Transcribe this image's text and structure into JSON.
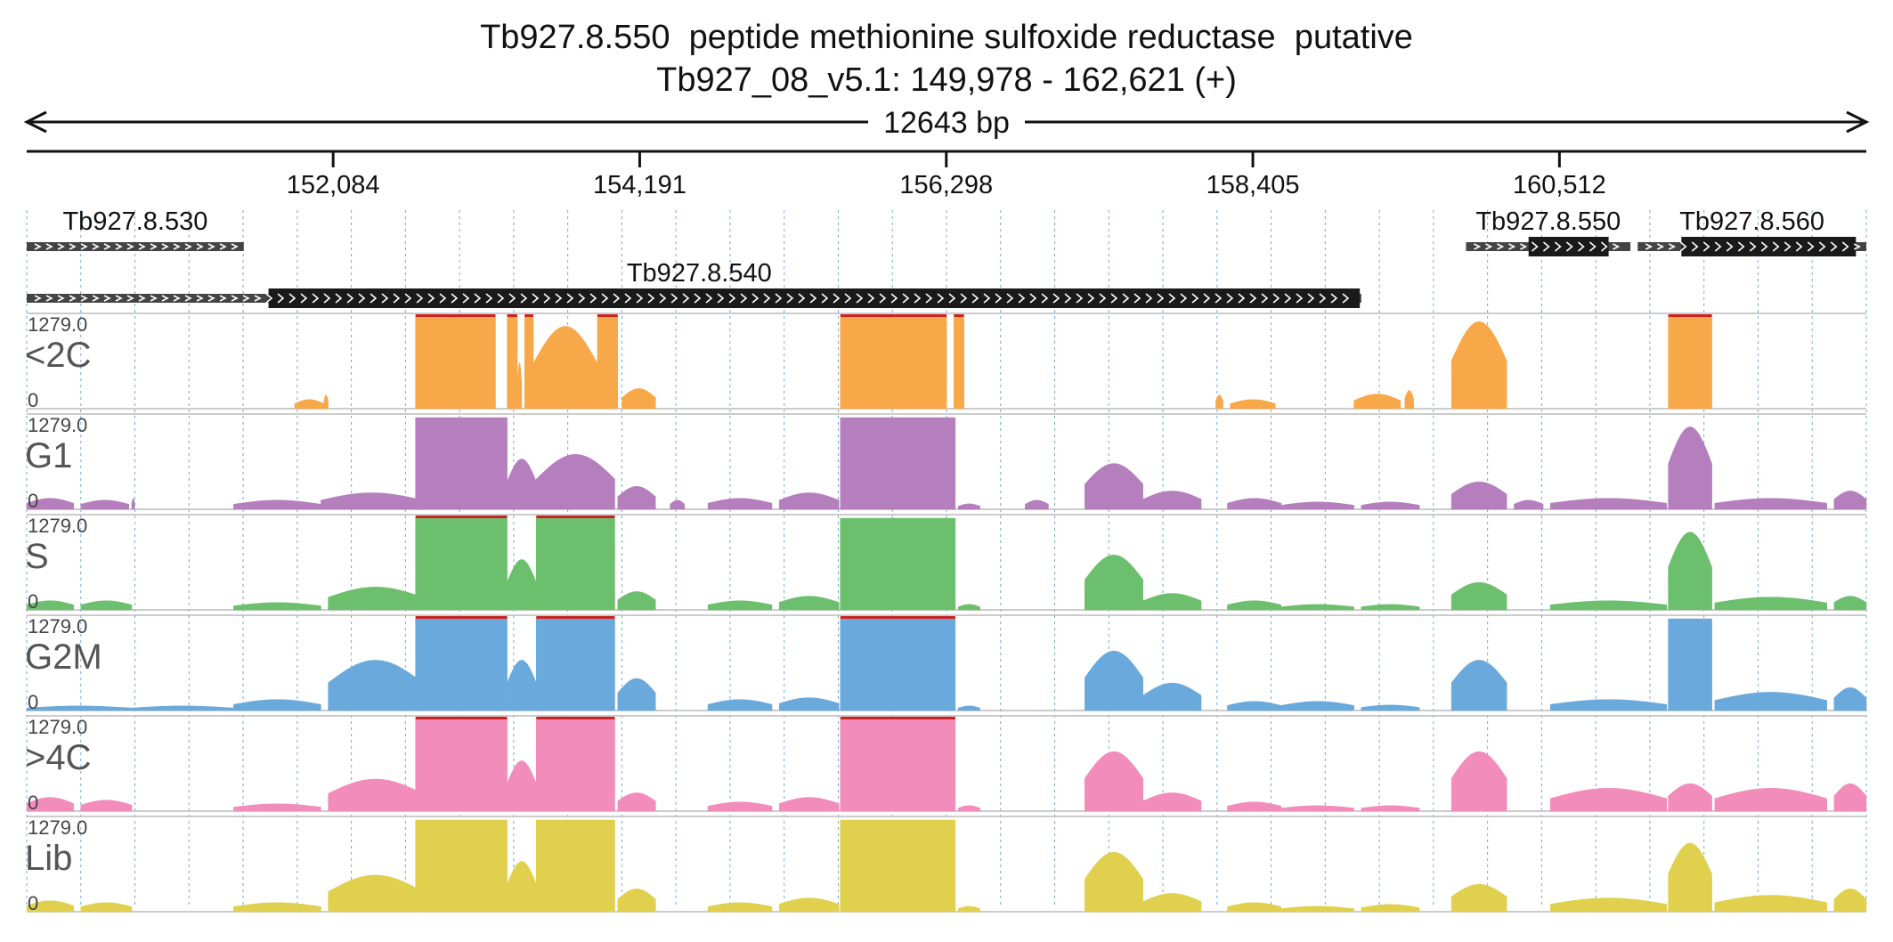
{
  "header": {
    "title": "Tb927.8.550  peptide methionine sulfoxide reductase  putative",
    "subtitle": "Tb927_08_v5.1: 149,978 - 162,621 (+)"
  },
  "colors": {
    "axis": "#111111",
    "grid": "#6fa8dc",
    "gene_utr": "#444444",
    "gene_cds": "#1a1a1a",
    "clip": "#cc2222"
  },
  "chart_data": {
    "type": "area",
    "span_label": "12643 bp",
    "region": {
      "start": 149978,
      "end": 162621,
      "strand": "+"
    },
    "ticks": [
      {
        "pos": 152084,
        "label": "152,084"
      },
      {
        "pos": 154191,
        "label": "154,191"
      },
      {
        "pos": 156298,
        "label": "156,298"
      },
      {
        "pos": 158405,
        "label": "158,405"
      },
      {
        "pos": 160512,
        "label": "160,512"
      }
    ],
    "genes": [
      {
        "name": "Tb927.8.530",
        "strand": "-",
        "row": 0,
        "start": 149978,
        "end": 151470,
        "cds": null
      },
      {
        "name": "Tb927.8.540",
        "strand": "-",
        "row": 1,
        "start": 149978,
        "end": 159150,
        "cds": [
          151640,
          159140
        ]
      },
      {
        "name": "Tb927.8.550",
        "strand": "-",
        "row": 0,
        "start": 159870,
        "end": 161000,
        "cds": [
          160300,
          160850
        ]
      },
      {
        "name": "Tb927.8.560",
        "strand": "-",
        "row": 0,
        "start": 161050,
        "end": 162621,
        "cds": [
          161350,
          162550
        ]
      }
    ],
    "tracks": [
      {
        "name": "<2C",
        "max": "1279.0",
        "min": "0",
        "color": "#f7a849",
        "clip_color": "#cc2222",
        "shapes": [
          [
            151820,
            152020,
            0.1
          ],
          [
            152020,
            152050,
            0.15
          ],
          [
            152650,
            153200,
            1.0,
            "clip"
          ],
          [
            153280,
            153350,
            1.0,
            "clip"
          ],
          [
            153350,
            153380,
            0.5
          ],
          [
            153400,
            153460,
            1.0,
            "clip"
          ],
          [
            153460,
            153900,
            0.9
          ],
          [
            153900,
            154040,
            1.0,
            "clip"
          ],
          [
            154070,
            154300,
            0.22
          ],
          [
            155570,
            155950,
            1.0,
            "clip"
          ],
          [
            155950,
            156300,
            1.0,
            "clip"
          ],
          [
            156350,
            156420,
            1.0,
            "clip"
          ],
          [
            158150,
            158200,
            0.15
          ],
          [
            158250,
            158560,
            0.1
          ],
          [
            159100,
            159420,
            0.16
          ],
          [
            159450,
            159510,
            0.2
          ],
          [
            159770,
            160150,
            0.95
          ],
          [
            161260,
            161560,
            1.0,
            "clip"
          ]
        ]
      },
      {
        "name": "G1",
        "max": "1279.0",
        "min": "0",
        "color": "#b57fbd",
        "shapes": [
          [
            149978,
            150300,
            0.12
          ],
          [
            150350,
            150680,
            0.1
          ],
          [
            150700,
            150720,
            0.12
          ],
          [
            151400,
            152000,
            0.1
          ],
          [
            152000,
            152700,
            0.18
          ],
          [
            152650,
            153280,
            1.0
          ],
          [
            153280,
            153480,
            0.55
          ],
          [
            153480,
            154020,
            0.6
          ],
          [
            154040,
            154300,
            0.25
          ],
          [
            154400,
            154500,
            0.1
          ],
          [
            154660,
            155100,
            0.12
          ],
          [
            155150,
            155560,
            0.18
          ],
          [
            155570,
            156360,
            1.0
          ],
          [
            156380,
            156530,
            0.06
          ],
          [
            156840,
            157000,
            0.1
          ],
          [
            157250,
            157650,
            0.5
          ],
          [
            157650,
            158050,
            0.2
          ],
          [
            158230,
            158600,
            0.12
          ],
          [
            158600,
            159100,
            0.08
          ],
          [
            159150,
            159550,
            0.08
          ],
          [
            159770,
            160150,
            0.3
          ],
          [
            160200,
            160400,
            0.1
          ],
          [
            160450,
            161250,
            0.12
          ],
          [
            161260,
            161560,
            0.9
          ],
          [
            161580,
            162350,
            0.12
          ],
          [
            162400,
            162621,
            0.2
          ]
        ]
      },
      {
        "name": "S",
        "max": "1279.0",
        "min": "0",
        "color": "#6cbf6c",
        "clip_color": "#cc2222",
        "shapes": [
          [
            149978,
            150300,
            0.1
          ],
          [
            150350,
            150700,
            0.1
          ],
          [
            151400,
            152000,
            0.08
          ],
          [
            152050,
            152700,
            0.25
          ],
          [
            152650,
            153280,
            1.0,
            "clip"
          ],
          [
            153280,
            153480,
            0.55
          ],
          [
            153480,
            154020,
            1.0,
            "clip"
          ],
          [
            154040,
            154300,
            0.2
          ],
          [
            154660,
            155100,
            0.1
          ],
          [
            155150,
            155560,
            0.15
          ],
          [
            155570,
            156360,
            1.0
          ],
          [
            156380,
            156530,
            0.06
          ],
          [
            157250,
            157650,
            0.6
          ],
          [
            157650,
            158050,
            0.18
          ],
          [
            158230,
            158600,
            0.1
          ],
          [
            158600,
            159100,
            0.06
          ],
          [
            159150,
            159550,
            0.06
          ],
          [
            159770,
            160150,
            0.3
          ],
          [
            160450,
            161250,
            0.1
          ],
          [
            161260,
            161560,
            0.85
          ],
          [
            161580,
            162350,
            0.14
          ],
          [
            162400,
            162621,
            0.15
          ]
        ]
      },
      {
        "name": "G2M",
        "max": "1279.0",
        "min": "0",
        "color": "#6aa9dc",
        "clip_color": "#cc2222",
        "shapes": [
          [
            149978,
            150700,
            0.05
          ],
          [
            150700,
            151400,
            0.05
          ],
          [
            151400,
            152000,
            0.12
          ],
          [
            152050,
            152700,
            0.55
          ],
          [
            152650,
            153280,
            1.0,
            "clip"
          ],
          [
            153280,
            153480,
            0.55
          ],
          [
            153480,
            154020,
            1.0,
            "clip"
          ],
          [
            154040,
            154300,
            0.35
          ],
          [
            154660,
            155100,
            0.12
          ],
          [
            155150,
            155560,
            0.14
          ],
          [
            155570,
            156360,
            1.0,
            "clip"
          ],
          [
            156380,
            156530,
            0.05
          ],
          [
            157250,
            157650,
            0.65
          ],
          [
            157650,
            158050,
            0.3
          ],
          [
            158230,
            158600,
            0.1
          ],
          [
            158600,
            159100,
            0.1
          ],
          [
            159150,
            159550,
            0.06
          ],
          [
            159770,
            160150,
            0.55
          ],
          [
            160450,
            161250,
            0.12
          ],
          [
            161260,
            161560,
            1.0
          ],
          [
            161580,
            162350,
            0.2
          ],
          [
            162400,
            162621,
            0.25
          ]
        ]
      },
      {
        "name": ">4C",
        "max": "1279.0",
        "min": "0",
        "color": "#f28cbb",
        "clip_color": "#cc2222",
        "shapes": [
          [
            149978,
            150300,
            0.15
          ],
          [
            150350,
            150700,
            0.12
          ],
          [
            151400,
            152000,
            0.08
          ],
          [
            152050,
            152700,
            0.35
          ],
          [
            152650,
            153280,
            1.0,
            "clip"
          ],
          [
            153280,
            153480,
            0.55
          ],
          [
            153480,
            154020,
            1.0,
            "clip"
          ],
          [
            154040,
            154300,
            0.2
          ],
          [
            154660,
            155100,
            0.1
          ],
          [
            155150,
            155560,
            0.15
          ],
          [
            155570,
            156360,
            1.0,
            "clip"
          ],
          [
            156380,
            156530,
            0.06
          ],
          [
            157250,
            157650,
            0.65
          ],
          [
            157650,
            158050,
            0.2
          ],
          [
            158230,
            158600,
            0.1
          ],
          [
            158600,
            159100,
            0.06
          ],
          [
            159150,
            159550,
            0.06
          ],
          [
            159770,
            160150,
            0.65
          ],
          [
            160450,
            161250,
            0.25
          ],
          [
            161260,
            161560,
            0.3
          ],
          [
            161580,
            162350,
            0.25
          ],
          [
            162400,
            162621,
            0.3
          ]
        ]
      },
      {
        "name": "Lib",
        "max": "1279.0",
        "min": "0",
        "color": "#e0d04e",
        "shapes": [
          [
            149978,
            150300,
            0.12
          ],
          [
            150350,
            150700,
            0.1
          ],
          [
            151400,
            152000,
            0.1
          ],
          [
            152050,
            152700,
            0.4
          ],
          [
            152650,
            153280,
            1.0
          ],
          [
            153280,
            153480,
            0.55
          ],
          [
            153480,
            154020,
            1.0
          ],
          [
            154040,
            154300,
            0.25
          ],
          [
            154660,
            155100,
            0.1
          ],
          [
            155150,
            155560,
            0.15
          ],
          [
            155570,
            156360,
            1.0
          ],
          [
            156380,
            156530,
            0.06
          ],
          [
            157250,
            157650,
            0.65
          ],
          [
            157650,
            158050,
            0.2
          ],
          [
            158230,
            158600,
            0.1
          ],
          [
            158600,
            159100,
            0.06
          ],
          [
            159150,
            159550,
            0.08
          ],
          [
            159770,
            160150,
            0.3
          ],
          [
            160450,
            161250,
            0.15
          ],
          [
            161260,
            161560,
            0.75
          ],
          [
            161580,
            162350,
            0.18
          ],
          [
            162400,
            162621,
            0.25
          ]
        ]
      }
    ]
  }
}
